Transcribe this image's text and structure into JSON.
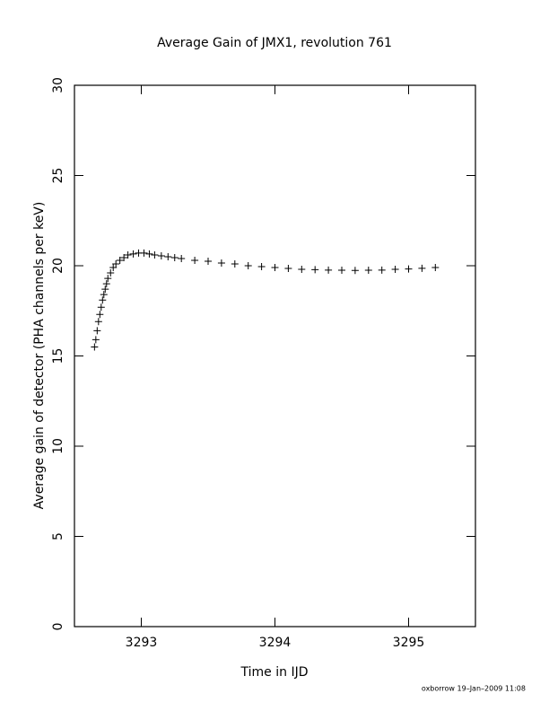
{
  "chart_data": {
    "type": "scatter",
    "title": "Average Gain of JMX1, revolution 761",
    "x_label": "Time in IJD",
    "y_label": "Average gain of detector (PHA channels per keV)",
    "footer": "oxborrow 19–Jan–2009 11:08",
    "marker": "plus",
    "color": "#000000",
    "xlim": [
      3292.5,
      3295.5
    ],
    "ylim": [
      0,
      30
    ],
    "xticks": [
      3293,
      3294,
      3295
    ],
    "yticks": [
      0,
      5,
      10,
      15,
      20,
      25,
      30
    ],
    "x": [
      3292.65,
      3292.66,
      3292.67,
      3292.68,
      3292.69,
      3292.7,
      3292.71,
      3292.72,
      3292.73,
      3292.74,
      3292.75,
      3292.77,
      3292.79,
      3292.81,
      3292.84,
      3292.87,
      3292.9,
      3292.94,
      3292.98,
      3293.02,
      3293.06,
      3293.1,
      3293.15,
      3293.2,
      3293.25,
      3293.3,
      3293.4,
      3293.5,
      3293.6,
      3293.7,
      3293.8,
      3293.9,
      3294.0,
      3294.1,
      3294.2,
      3294.3,
      3294.4,
      3294.5,
      3294.6,
      3294.7,
      3294.8,
      3294.9,
      3295.0,
      3295.1,
      3295.2
    ],
    "values": [
      15.5,
      15.9,
      16.4,
      16.9,
      17.3,
      17.7,
      18.1,
      18.4,
      18.7,
      19.0,
      19.3,
      19.6,
      19.9,
      20.1,
      20.3,
      20.45,
      20.6,
      20.65,
      20.7,
      20.7,
      20.65,
      20.6,
      20.55,
      20.5,
      20.45,
      20.4,
      20.3,
      20.25,
      20.15,
      20.1,
      20.0,
      19.95,
      19.9,
      19.85,
      19.8,
      19.78,
      19.76,
      19.75,
      19.74,
      19.75,
      19.76,
      19.8,
      19.82,
      19.86,
      19.9
    ]
  }
}
